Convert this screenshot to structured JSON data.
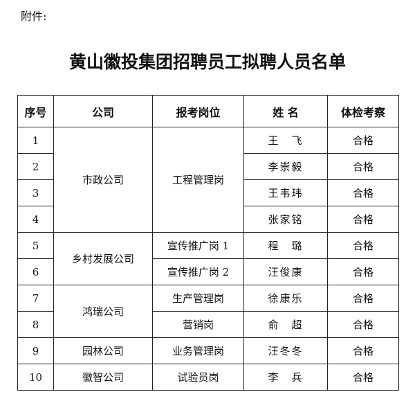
{
  "attachment_label": "附件:",
  "title": "黄山徽投集团招聘员工拟聘人员名单",
  "table": {
    "headers": [
      "序号",
      "公司",
      "报考岗位",
      "姓 名",
      "体检考察"
    ],
    "rows": [
      {
        "no": "1",
        "company": "市政公司",
        "position": "工程管理岗",
        "name": "王　飞",
        "result": "合格"
      },
      {
        "no": "2",
        "name": "李崇毅",
        "result": "合格"
      },
      {
        "no": "3",
        "name": "王韦玮",
        "result": "合格"
      },
      {
        "no": "4",
        "name": "张家铭",
        "result": "合格"
      },
      {
        "no": "5",
        "company": "乡村发展公司",
        "position": "宣传推广岗 1",
        "name": "程　璐",
        "result": "合格"
      },
      {
        "no": "6",
        "position": "宣传推广岗 2",
        "name": "汪俊康",
        "result": "合格"
      },
      {
        "no": "7",
        "company": "鸿瑞公司",
        "position": "生产管理岗",
        "name": "徐康乐",
        "result": "合格"
      },
      {
        "no": "8",
        "position": "营销岗",
        "name": "俞　超",
        "result": "合格"
      },
      {
        "no": "9",
        "company": "园林公司",
        "position": "业务管理岗",
        "name": "汪冬冬",
        "result": "合格"
      },
      {
        "no": "10",
        "company": "徽智公司",
        "position": "试验员岗",
        "name": "李　兵",
        "result": "合格"
      }
    ]
  }
}
